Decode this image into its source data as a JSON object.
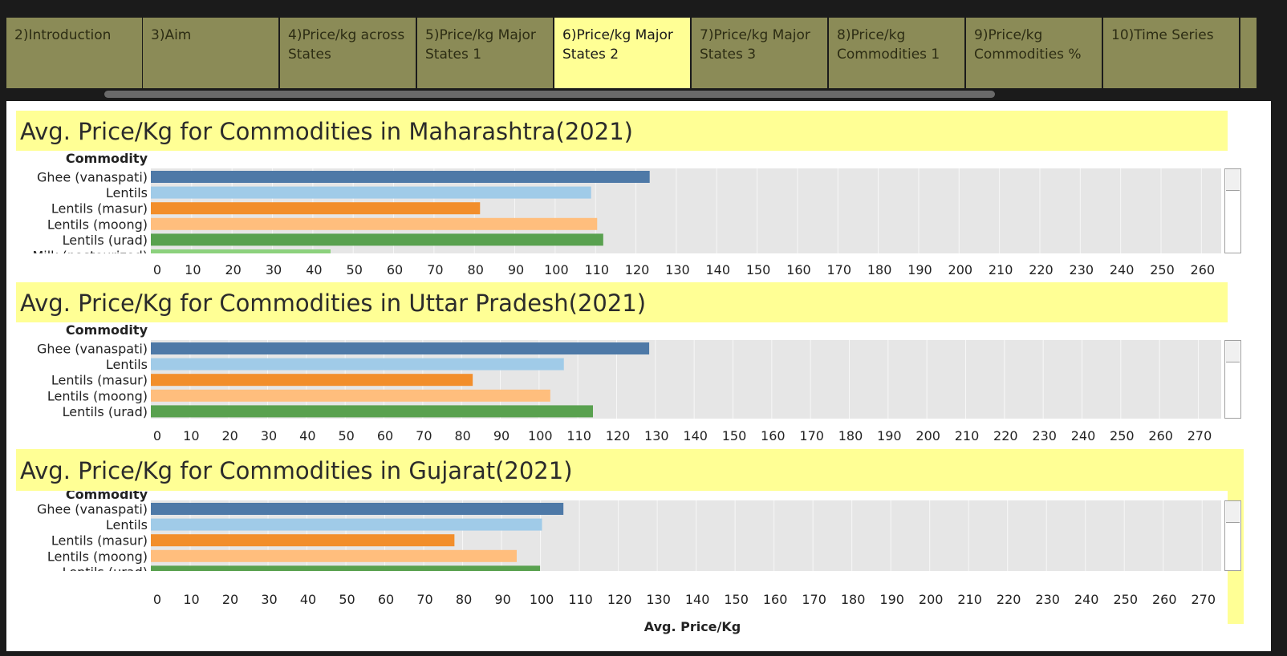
{
  "tabs": [
    {
      "label": "2)Introduction",
      "active": false
    },
    {
      "label": "3)Aim",
      "active": false
    },
    {
      "label": "4)Price/kg across States",
      "active": false
    },
    {
      "label": "5)Price/kg Major States 1",
      "active": false
    },
    {
      "label": "6)Price/kg Major States 2",
      "active": true
    },
    {
      "label": "7)Price/kg Major States 3",
      "active": false
    },
    {
      "label": "8)Price/kg Commodities 1",
      "active": false
    },
    {
      "label": "9)Price/kg Commodities %",
      "active": false
    },
    {
      "label": "10)Time Series",
      "active": false
    }
  ],
  "chart_data": [
    {
      "type": "bar",
      "orientation": "horizontal",
      "title": "Avg. Price/Kg for Commodities in Maharashtra(2021)",
      "category_header": "Commodity",
      "xlabel": "",
      "categories": [
        "Ghee (vanaspati)",
        "Lentils",
        "Lentils (masur)",
        "Lentils (moong)",
        "Lentils (urad)",
        "Milk (pasteurized)"
      ],
      "values": [
        123.5,
        109,
        81.5,
        110.5,
        112,
        44.5
      ],
      "bar_colors": [
        "#4e79a7",
        "#a0cbe8",
        "#f28e2b",
        "#ffbe7d",
        "#59a14f",
        "#8cd17d"
      ],
      "xlim": [
        0,
        265
      ],
      "xticks": [
        0,
        10,
        20,
        30,
        40,
        50,
        60,
        70,
        80,
        90,
        100,
        110,
        120,
        130,
        140,
        150,
        160,
        170,
        180,
        190,
        200,
        210,
        220,
        230,
        240,
        250,
        260
      ],
      "grid": true
    },
    {
      "type": "bar",
      "orientation": "horizontal",
      "title": "Avg. Price/Kg for Commodities in Uttar Pradesh(2021)",
      "category_header": "Commodity",
      "xlabel": "",
      "categories": [
        "Ghee (vanaspati)",
        "Lentils",
        "Lentils (masur)",
        "Lentils (moong)",
        "Lentils (urad)"
      ],
      "values": [
        128.5,
        106.5,
        83,
        103,
        114
      ],
      "bar_colors": [
        "#4e79a7",
        "#a0cbe8",
        "#f28e2b",
        "#ffbe7d",
        "#59a14f"
      ],
      "xlim": [
        0,
        276
      ],
      "xticks": [
        0,
        10,
        20,
        30,
        40,
        50,
        60,
        70,
        80,
        90,
        100,
        110,
        120,
        130,
        140,
        150,
        160,
        170,
        180,
        190,
        200,
        210,
        220,
        230,
        240,
        250,
        260,
        270
      ],
      "grid": true
    },
    {
      "type": "bar",
      "orientation": "horizontal",
      "title": "Avg. Price/Kg for Commodities in Gujarat(2021)",
      "category_header": "Commodity",
      "xlabel": "Avg. Price/Kg",
      "categories": [
        "Ghee (vanaspati)",
        "Lentils",
        "Lentils (masur)",
        "Lentils (moong)",
        "Lentils (urad)"
      ],
      "values": [
        106,
        100.5,
        78,
        94,
        100
      ],
      "bar_colors": [
        "#4e79a7",
        "#a0cbe8",
        "#f28e2b",
        "#ffbe7d",
        "#59a14f"
      ],
      "xlim": [
        0,
        275
      ],
      "xticks": [
        0,
        10,
        20,
        30,
        40,
        50,
        60,
        70,
        80,
        90,
        100,
        110,
        120,
        130,
        140,
        150,
        160,
        170,
        180,
        190,
        200,
        210,
        220,
        230,
        240,
        250,
        260,
        270
      ],
      "grid": true
    }
  ]
}
